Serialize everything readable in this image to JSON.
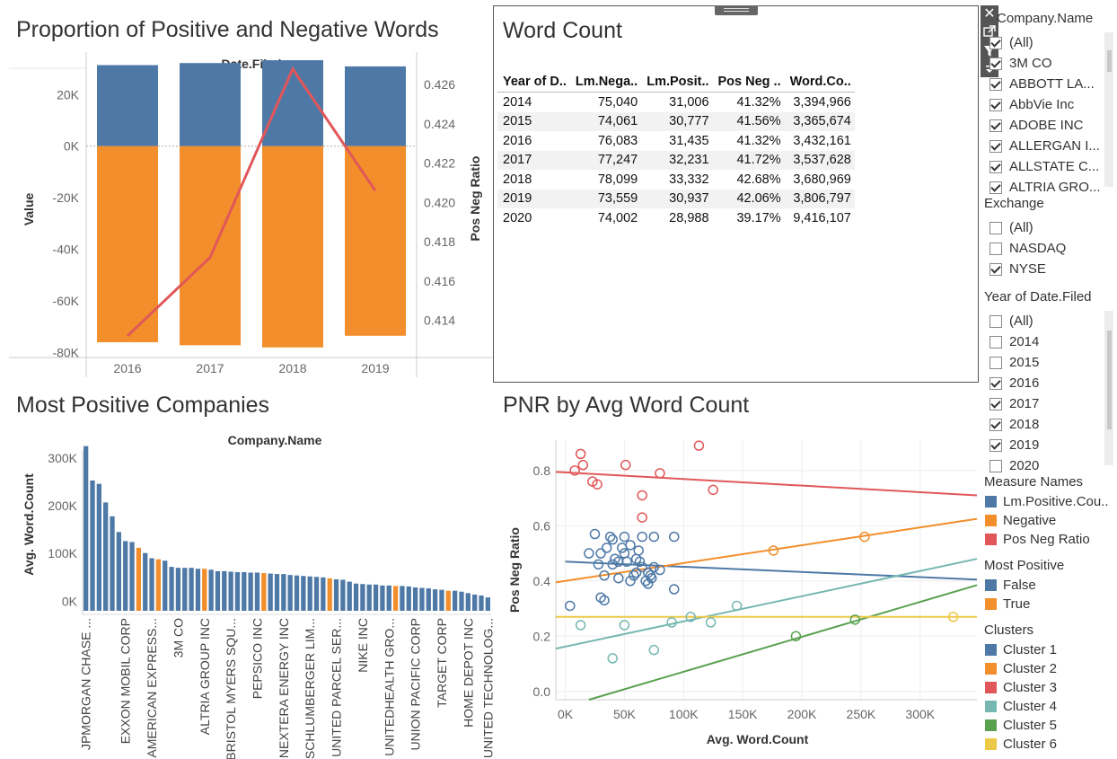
{
  "titles": {
    "prop": "Proportion of Positive and Negative Words",
    "wordcount": "Word Count",
    "mostpos": "Most Positive Companies",
    "pnr": "PNR by Avg Word Count"
  },
  "colors": {
    "blue": "#4e79a7",
    "orange": "#f28e2b",
    "red": "#e15759",
    "teal": "#76b7b2",
    "green": "#59a14f",
    "yellow": "#edc948"
  },
  "word_table": {
    "headers": [
      "Year of D..",
      "Lm.Nega..",
      "Lm.Posit..",
      "Pos Neg ..",
      "Word.Co.."
    ],
    "rows": [
      [
        "2014",
        "75,040",
        "31,006",
        "41.32%",
        "3,394,966"
      ],
      [
        "2015",
        "74,061",
        "30,777",
        "41.56%",
        "3,365,674"
      ],
      [
        "2016",
        "76,083",
        "31,435",
        "41.32%",
        "3,432,161"
      ],
      [
        "2017",
        "77,247",
        "32,231",
        "41.72%",
        "3,537,628"
      ],
      [
        "2018",
        "78,099",
        "33,332",
        "42.68%",
        "3,680,969"
      ],
      [
        "2019",
        "73,559",
        "30,937",
        "42.06%",
        "3,806,797"
      ],
      [
        "2020",
        "74,002",
        "28,988",
        "39.17%",
        "9,416,107"
      ]
    ]
  },
  "filters": {
    "company": {
      "title": "Company.Name",
      "items": [
        {
          "label": "(All)",
          "checked": true
        },
        {
          "label": "3M CO",
          "checked": true
        },
        {
          "label": "ABBOTT LA...",
          "checked": true
        },
        {
          "label": "AbbVie Inc",
          "checked": true
        },
        {
          "label": "ADOBE INC",
          "checked": true
        },
        {
          "label": "ALLERGAN I...",
          "checked": true
        },
        {
          "label": "ALLSTATE C...",
          "checked": true
        },
        {
          "label": "ALTRIA GRO...",
          "checked": true
        }
      ]
    },
    "exchange": {
      "title": "Exchange",
      "items": [
        {
          "label": "(All)",
          "checked": false
        },
        {
          "label": "NASDAQ",
          "checked": false
        },
        {
          "label": "NYSE",
          "checked": true
        }
      ]
    },
    "year": {
      "title": "Year of Date.Filed",
      "items": [
        {
          "label": "(All)",
          "checked": false
        },
        {
          "label": "2014",
          "checked": false
        },
        {
          "label": "2015",
          "checked": false
        },
        {
          "label": "2016",
          "checked": true
        },
        {
          "label": "2017",
          "checked": true
        },
        {
          "label": "2018",
          "checked": true
        },
        {
          "label": "2019",
          "checked": true
        },
        {
          "label": "2020",
          "checked": false
        }
      ]
    }
  },
  "legends": {
    "measure": {
      "title": "Measure Names",
      "items": [
        {
          "label": "Lm.Positive.Cou..",
          "color": "#4e79a7"
        },
        {
          "label": "Negative",
          "color": "#f28e2b"
        },
        {
          "label": "Pos Neg Ratio",
          "color": "#e15759"
        }
      ]
    },
    "mostpos": {
      "title": "Most Positive",
      "items": [
        {
          "label": "False",
          "color": "#4e79a7"
        },
        {
          "label": "True",
          "color": "#f28e2b"
        }
      ]
    },
    "clusters": {
      "title": "Clusters",
      "items": [
        {
          "label": "Cluster 1",
          "color": "#4e79a7"
        },
        {
          "label": "Cluster 2",
          "color": "#f28e2b"
        },
        {
          "label": "Cluster 3",
          "color": "#e15759"
        },
        {
          "label": "Cluster 4",
          "color": "#76b7b2"
        },
        {
          "label": "Cluster 5",
          "color": "#59a14f"
        },
        {
          "label": "Cluster 6",
          "color": "#edc948"
        }
      ]
    }
  },
  "chart_data": [
    {
      "type": "bar",
      "title": "Proportion of Positive and Negative Words",
      "header": "Date.Filed",
      "categories": [
        "2016",
        "2017",
        "2018",
        "2019"
      ],
      "series": [
        {
          "name": "Lm.Positive.Cou..",
          "values": [
            31435,
            32231,
            33332,
            30937
          ]
        },
        {
          "name": "Negative",
          "values": [
            -76083,
            -77247,
            -78099,
            -73559
          ]
        },
        {
          "name": "Pos Neg Ratio",
          "axis": "right",
          "render": "line",
          "values": [
            0.4132,
            0.4172,
            0.4268,
            0.4206
          ]
        }
      ],
      "ylabel": "Value",
      "ylim": [
        -82000,
        33000
      ],
      "yticks": [
        20000,
        0,
        -20000,
        -40000,
        -60000,
        -80000
      ],
      "ytick_labels": [
        "20K",
        "0K",
        "-20K",
        "-40K",
        "-60K",
        "-80K"
      ],
      "y2label": "Pos Neg Ratio",
      "y2lim": [
        0.4121,
        0.4272
      ],
      "y2ticks": [
        0.426,
        0.424,
        0.422,
        0.42,
        0.418,
        0.416,
        0.414
      ],
      "y2tick_labels": [
        "0.426",
        "0.424",
        "0.422",
        "0.420",
        "0.418",
        "0.416",
        "0.414"
      ]
    },
    {
      "type": "bar",
      "title": "Most Positive Companies",
      "header": "Company.Name",
      "ylabel": "Avg. Word.Count",
      "ylim": [
        -20000,
        330000
      ],
      "yticks": [
        0,
        100000,
        200000,
        300000
      ],
      "ytick_labels": [
        "0K",
        "100K",
        "200K",
        "300K"
      ],
      "values": [
        325000,
        253000,
        246000,
        207000,
        178000,
        145000,
        126000,
        124000,
        112000,
        101000,
        90000,
        88000,
        85000,
        72000,
        70000,
        70000,
        70000,
        68000,
        68000,
        66000,
        63000,
        63000,
        62000,
        61000,
        61000,
        60000,
        60000,
        59000,
        58000,
        57000,
        57000,
        55000,
        54000,
        53000,
        52000,
        51000,
        50000,
        48000,
        46000,
        45000,
        41000,
        37000,
        36000,
        35000,
        35000,
        33000,
        33000,
        32000,
        32000,
        31000,
        29000,
        28000,
        27000,
        25000,
        24000,
        22000,
        22000,
        20000,
        17000,
        14000,
        12000,
        8000
      ],
      "highlight_true_indices": [
        8,
        11,
        18,
        27,
        37,
        47,
        55
      ],
      "tick_labels": [
        "JPMORGAN CHASE ...",
        "EXXON MOBIL CORP",
        "AMERICAN EXPRESS...",
        "3M CO",
        "ALTRIA GROUP INC",
        "BRISTOL MYERS SQU...",
        "PEPSICO INC",
        "NEXTERA ENERGY INC",
        "SCHLUMBERGER LIM...",
        "UNITED PARCEL SER...",
        "NIKE INC",
        "UNITEDHEALTH GRO...",
        "UNION PACIFIC CORP",
        "TARGET CORP",
        "HOME DEPOT INC",
        "UNITED TECHNOLOG..."
      ],
      "tick_indices": [
        0,
        6,
        10,
        14,
        18,
        22,
        26,
        30,
        34,
        38,
        42,
        46,
        50,
        54,
        58,
        61
      ]
    },
    {
      "type": "scatter",
      "title": "PNR by Avg Word Count",
      "xlabel": "Avg. Word.Count",
      "ylabel": "Pos Neg Ratio",
      "xlim": [
        -8000,
        348000
      ],
      "ylim": [
        -0.03,
        0.91
      ],
      "xticks": [
        0,
        50000,
        100000,
        150000,
        200000,
        250000,
        300000
      ],
      "xtick_labels": [
        "0K",
        "50K",
        "100K",
        "150K",
        "200K",
        "250K",
        "300K"
      ],
      "yticks": [
        0,
        0.2,
        0.4,
        0.6,
        0.8
      ],
      "ytick_labels": [
        "0.0",
        "0.2",
        "0.4",
        "0.6",
        "0.8"
      ],
      "clusters": [
        {
          "name": "Cluster 1",
          "color": "#4e79a7",
          "points": [
            [
              25000,
              0.57
            ],
            [
              30000,
              0.5
            ],
            [
              35000,
              0.52
            ],
            [
              40000,
              0.55
            ],
            [
              45000,
              0.47
            ],
            [
              50000,
              0.5
            ],
            [
              55000,
              0.53
            ],
            [
              60000,
              0.48
            ],
            [
              65000,
              0.45
            ],
            [
              70000,
              0.43
            ],
            [
              75000,
              0.45
            ],
            [
              80000,
              0.44
            ],
            [
              38000,
              0.56
            ],
            [
              42000,
              0.48
            ],
            [
              48000,
              0.52
            ],
            [
              52000,
              0.47
            ],
            [
              58000,
              0.42
            ],
            [
              62000,
              0.51
            ],
            [
              68000,
              0.4
            ],
            [
              72000,
              0.42
            ],
            [
              20000,
              0.5
            ],
            [
              28000,
              0.46
            ],
            [
              33000,
              0.42
            ],
            [
              45000,
              0.41
            ],
            [
              55000,
              0.4
            ],
            [
              60000,
              0.43
            ],
            [
              30000,
              0.34
            ],
            [
              33000,
              0.33
            ],
            [
              4000,
              0.31
            ],
            [
              65000,
              0.56
            ],
            [
              75000,
              0.56
            ],
            [
              92000,
              0.56
            ],
            [
              92000,
              0.37
            ],
            [
              50000,
              0.56
            ],
            [
              40000,
              0.46
            ],
            [
              70000,
              0.39
            ],
            [
              73000,
              0.41
            ],
            [
              63000,
              0.47
            ]
          ],
          "trend": [
            [
              0,
              0.47
            ],
            [
              348000,
              0.405
            ]
          ]
        },
        {
          "name": "Cluster 2",
          "color": "#f28e2b",
          "points": [
            [
              176000,
              0.51
            ],
            [
              253000,
              0.56
            ]
          ],
          "trend": [
            [
              -8000,
              0.395
            ],
            [
              348000,
              0.625
            ]
          ]
        },
        {
          "name": "Cluster 3",
          "color": "#e15759",
          "points": [
            [
              13000,
              0.86
            ],
            [
              15000,
              0.82
            ],
            [
              8000,
              0.8
            ],
            [
              23000,
              0.76
            ],
            [
              27000,
              0.75
            ],
            [
              51000,
              0.82
            ],
            [
              80000,
              0.79
            ],
            [
              65000,
              0.71
            ],
            [
              65000,
              0.63
            ],
            [
              113000,
              0.89
            ],
            [
              125000,
              0.73
            ]
          ],
          "trend": [
            [
              -8000,
              0.795
            ],
            [
              348000,
              0.71
            ]
          ]
        },
        {
          "name": "Cluster 4",
          "color": "#76b7b2",
          "points": [
            [
              13000,
              0.24
            ],
            [
              50000,
              0.24
            ],
            [
              40000,
              0.12
            ],
            [
              90000,
              0.25
            ],
            [
              106000,
              0.27
            ],
            [
              123000,
              0.25
            ],
            [
              145000,
              0.31
            ],
            [
              75000,
              0.15
            ]
          ],
          "trend": [
            [
              -8000,
              0.155
            ],
            [
              348000,
              0.48
            ]
          ]
        },
        {
          "name": "Cluster 5",
          "color": "#59a14f",
          "points": [
            [
              195000,
              0.2
            ],
            [
              245000,
              0.26
            ]
          ],
          "trend": [
            [
              20000,
              -0.03
            ],
            [
              348000,
              0.385
            ]
          ]
        },
        {
          "name": "Cluster 6",
          "color": "#edc948",
          "points": [
            [
              328000,
              0.27
            ]
          ],
          "trend": [
            [
              -8000,
              0.27
            ],
            [
              348000,
              0.27
            ]
          ]
        }
      ]
    }
  ]
}
